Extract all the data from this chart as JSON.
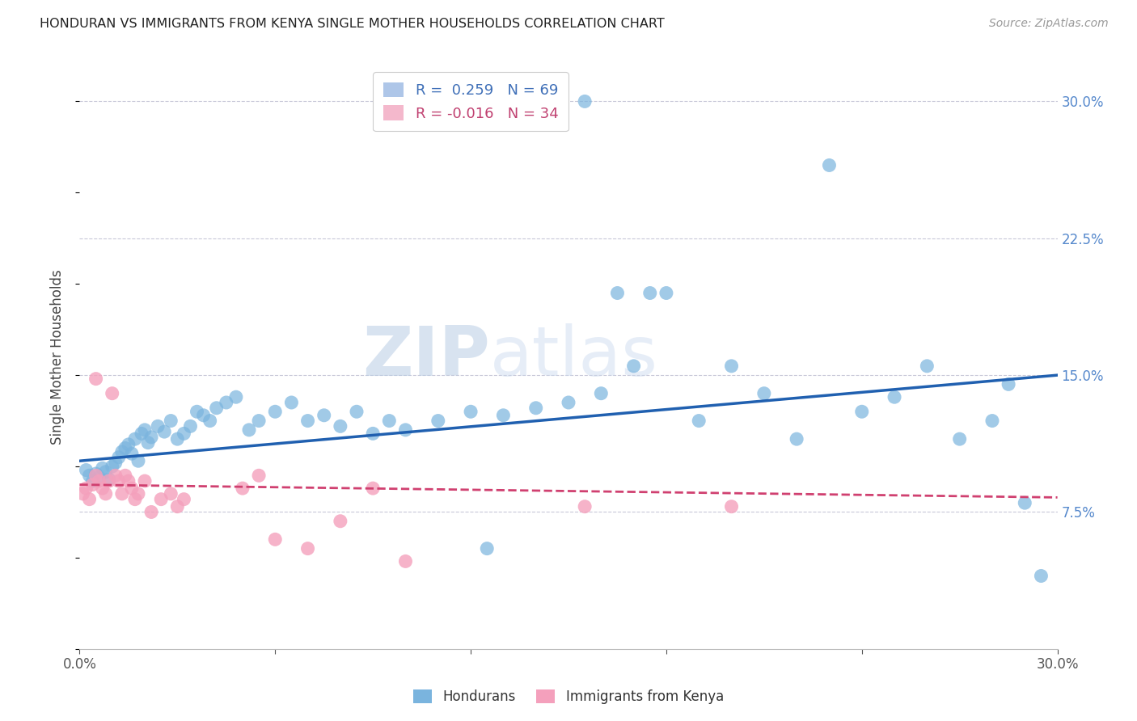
{
  "title": "HONDURAN VS IMMIGRANTS FROM KENYA SINGLE MOTHER HOUSEHOLDS CORRELATION CHART",
  "source": "Source: ZipAtlas.com",
  "ylabel_label": "Single Mother Households",
  "xlim": [
    0.0,
    0.3
  ],
  "ylim": [
    0.0,
    0.32
  ],
  "x_ticks": [
    0.0,
    0.06,
    0.12,
    0.18,
    0.24,
    0.3
  ],
  "x_tick_labels": [
    "0.0%",
    "",
    "",
    "",
    "",
    "30.0%"
  ],
  "y_ticks_right": [
    0.075,
    0.15,
    0.225,
    0.3
  ],
  "y_tick_labels_right": [
    "7.5%",
    "15.0%",
    "22.5%",
    "30.0%"
  ],
  "blue_color": "#7ab4de",
  "pink_color": "#f4a0bc",
  "blue_line_color": "#2060b0",
  "pink_line_color": "#d04070",
  "blue_line_start_y": 0.103,
  "blue_line_end_y": 0.15,
  "pink_line_start_y": 0.09,
  "pink_line_end_y": 0.083,
  "honduran_points": [
    [
      0.002,
      0.098
    ],
    [
      0.003,
      0.095
    ],
    [
      0.004,
      0.092
    ],
    [
      0.005,
      0.096
    ],
    [
      0.006,
      0.094
    ],
    [
      0.007,
      0.099
    ],
    [
      0.008,
      0.097
    ],
    [
      0.009,
      0.093
    ],
    [
      0.01,
      0.1
    ],
    [
      0.011,
      0.102
    ],
    [
      0.012,
      0.105
    ],
    [
      0.013,
      0.108
    ],
    [
      0.014,
      0.11
    ],
    [
      0.015,
      0.112
    ],
    [
      0.016,
      0.107
    ],
    [
      0.017,
      0.115
    ],
    [
      0.018,
      0.103
    ],
    [
      0.019,
      0.118
    ],
    [
      0.02,
      0.12
    ],
    [
      0.021,
      0.113
    ],
    [
      0.022,
      0.116
    ],
    [
      0.024,
      0.122
    ],
    [
      0.026,
      0.119
    ],
    [
      0.028,
      0.125
    ],
    [
      0.03,
      0.115
    ],
    [
      0.032,
      0.118
    ],
    [
      0.034,
      0.122
    ],
    [
      0.036,
      0.13
    ],
    [
      0.038,
      0.128
    ],
    [
      0.04,
      0.125
    ],
    [
      0.042,
      0.132
    ],
    [
      0.045,
      0.135
    ],
    [
      0.048,
      0.138
    ],
    [
      0.052,
      0.12
    ],
    [
      0.055,
      0.125
    ],
    [
      0.06,
      0.13
    ],
    [
      0.065,
      0.135
    ],
    [
      0.07,
      0.125
    ],
    [
      0.075,
      0.128
    ],
    [
      0.08,
      0.122
    ],
    [
      0.085,
      0.13
    ],
    [
      0.09,
      0.118
    ],
    [
      0.095,
      0.125
    ],
    [
      0.1,
      0.12
    ],
    [
      0.11,
      0.125
    ],
    [
      0.12,
      0.13
    ],
    [
      0.13,
      0.128
    ],
    [
      0.14,
      0.132
    ],
    [
      0.15,
      0.135
    ],
    [
      0.16,
      0.14
    ],
    [
      0.155,
      0.3
    ],
    [
      0.165,
      0.195
    ],
    [
      0.17,
      0.155
    ],
    [
      0.175,
      0.195
    ],
    [
      0.18,
      0.195
    ],
    [
      0.19,
      0.125
    ],
    [
      0.2,
      0.155
    ],
    [
      0.21,
      0.14
    ],
    [
      0.22,
      0.115
    ],
    [
      0.23,
      0.265
    ],
    [
      0.24,
      0.13
    ],
    [
      0.25,
      0.138
    ],
    [
      0.26,
      0.155
    ],
    [
      0.27,
      0.115
    ],
    [
      0.28,
      0.125
    ],
    [
      0.285,
      0.145
    ],
    [
      0.29,
      0.08
    ],
    [
      0.295,
      0.04
    ],
    [
      0.125,
      0.055
    ]
  ],
  "kenya_points": [
    [
      0.001,
      0.085
    ],
    [
      0.002,
      0.088
    ],
    [
      0.003,
      0.082
    ],
    [
      0.004,
      0.09
    ],
    [
      0.005,
      0.095
    ],
    [
      0.005,
      0.148
    ],
    [
      0.006,
      0.092
    ],
    [
      0.007,
      0.088
    ],
    [
      0.008,
      0.085
    ],
    [
      0.009,
      0.092
    ],
    [
      0.01,
      0.14
    ],
    [
      0.011,
      0.095
    ],
    [
      0.012,
      0.092
    ],
    [
      0.013,
      0.085
    ],
    [
      0.014,
      0.095
    ],
    [
      0.015,
      0.092
    ],
    [
      0.016,
      0.088
    ],
    [
      0.017,
      0.082
    ],
    [
      0.018,
      0.085
    ],
    [
      0.02,
      0.092
    ],
    [
      0.022,
      0.075
    ],
    [
      0.025,
      0.082
    ],
    [
      0.028,
      0.085
    ],
    [
      0.03,
      0.078
    ],
    [
      0.032,
      0.082
    ],
    [
      0.05,
      0.088
    ],
    [
      0.055,
      0.095
    ],
    [
      0.06,
      0.06
    ],
    [
      0.07,
      0.055
    ],
    [
      0.08,
      0.07
    ],
    [
      0.09,
      0.088
    ],
    [
      0.1,
      0.048
    ],
    [
      0.155,
      0.078
    ],
    [
      0.2,
      0.078
    ]
  ]
}
